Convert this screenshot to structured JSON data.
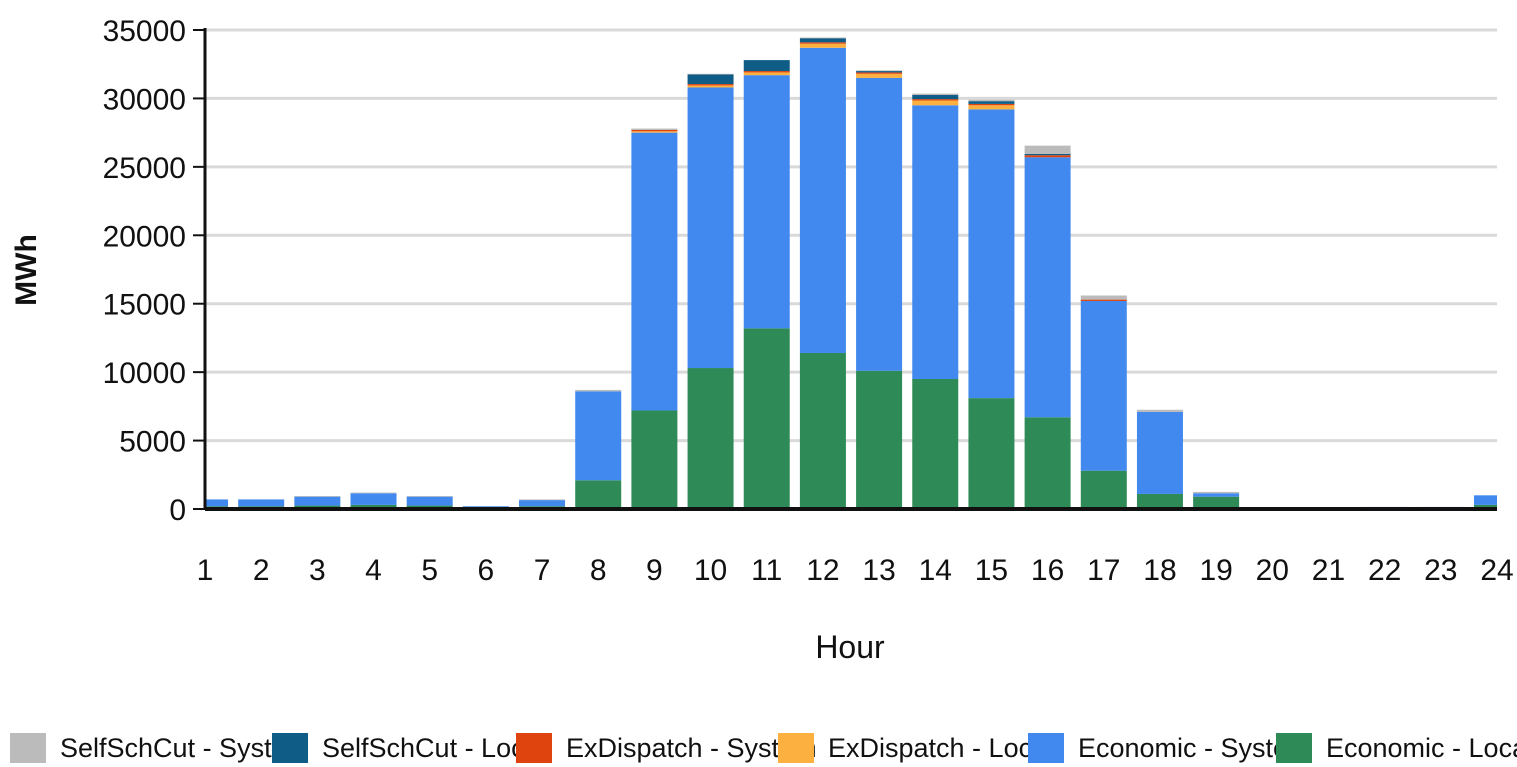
{
  "chart_data": {
    "type": "bar",
    "stacked": true,
    "title": "",
    "xlabel": "Hour",
    "ylabel": "MWh",
    "ylim": [
      0,
      35000
    ],
    "yticks": [
      0,
      5000,
      10000,
      15000,
      20000,
      25000,
      30000,
      35000
    ],
    "grid": true,
    "legend_position": "bottom",
    "categories": [
      "1",
      "2",
      "3",
      "4",
      "5",
      "6",
      "7",
      "8",
      "9",
      "10",
      "11",
      "12",
      "13",
      "14",
      "15",
      "16",
      "17",
      "18",
      "19",
      "20",
      "21",
      "22",
      "23",
      "24"
    ],
    "series": [
      {
        "name": "Economic - Local",
        "color": "#2e8b57",
        "values": [
          200,
          200,
          250,
          300,
          250,
          100,
          200,
          2100,
          7200,
          10300,
          13200,
          11400,
          10100,
          9500,
          8100,
          6700,
          2800,
          1100,
          900,
          50,
          50,
          100,
          100,
          300
        ]
      },
      {
        "name": "Economic - System",
        "color": "#4189ef",
        "values": [
          500,
          500,
          650,
          850,
          650,
          100,
          450,
          6500,
          20300,
          20500,
          18500,
          22300,
          21400,
          20000,
          21100,
          19000,
          12400,
          6000,
          250,
          50,
          50,
          50,
          50,
          700
        ]
      },
      {
        "name": "ExDispatch - Local",
        "color": "#fbb040",
        "values": [
          0,
          0,
          0,
          0,
          0,
          0,
          0,
          0,
          100,
          150,
          200,
          300,
          300,
          350,
          300,
          0,
          0,
          0,
          0,
          0,
          0,
          0,
          0,
          0
        ]
      },
      {
        "name": "ExDispatch - System",
        "color": "#e0440e",
        "values": [
          0,
          0,
          0,
          0,
          0,
          0,
          0,
          0,
          100,
          100,
          100,
          100,
          100,
          100,
          100,
          150,
          100,
          0,
          0,
          0,
          0,
          0,
          0,
          0
        ]
      },
      {
        "name": "SelfSchCut - Local",
        "color": "#0f5d87",
        "values": [
          0,
          0,
          0,
          0,
          0,
          0,
          0,
          0,
          0,
          700,
          800,
          300,
          100,
          300,
          200,
          100,
          0,
          0,
          0,
          0,
          0,
          0,
          0,
          0
        ]
      },
      {
        "name": "SelfSchCut - System",
        "color": "#bbbbbb",
        "values": [
          0,
          0,
          50,
          50,
          50,
          0,
          50,
          100,
          100,
          50,
          0,
          50,
          50,
          100,
          100,
          600,
          300,
          150,
          100,
          0,
          0,
          0,
          0,
          0
        ]
      }
    ],
    "legend_order": [
      "SelfSchCut - System",
      "SelfSchCut - Local",
      "ExDispatch - System",
      "ExDispatch - Local",
      "Economic - System",
      "Economic - Local"
    ]
  }
}
